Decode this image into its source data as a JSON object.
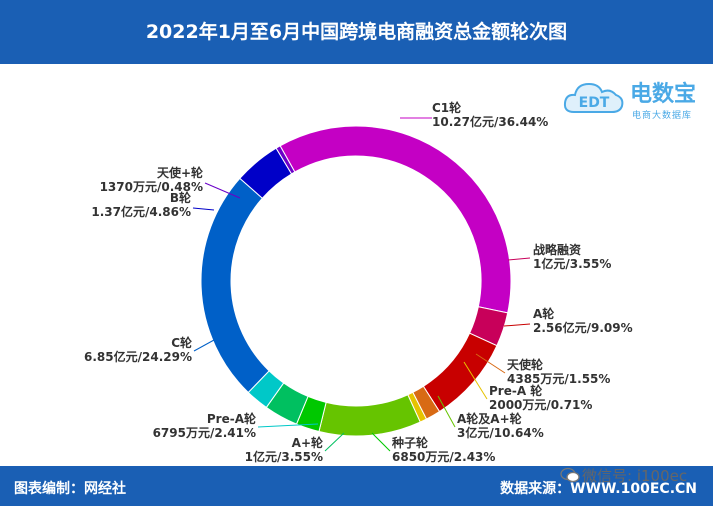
{
  "header": {
    "title": "2022年1月至6月中国跨境电商融资总金额轮次图"
  },
  "logo": {
    "brand": "电数宝",
    "sub": "电商大数据库",
    "mark": "EDT"
  },
  "footer": {
    "left": "图表编制：网经社",
    "right": "数据来源：WWW.100EC.CN"
  },
  "watermark": {
    "text": "微信号: i100ec"
  },
  "chart_data": {
    "type": "pie",
    "style": "donut",
    "title": "2022年1月至6月中国跨境电商融资总金额轮次图",
    "slices": [
      {
        "name": "C1轮",
        "amount": "10.27亿元",
        "percent": 36.44,
        "color": "#c400c4"
      },
      {
        "name": "战略融资",
        "amount": "1亿元",
        "percent": 3.55,
        "color": "#c8005a"
      },
      {
        "name": "A轮",
        "amount": "2.56亿元",
        "percent": 9.09,
        "color": "#c80000"
      },
      {
        "name": "天使轮",
        "amount": "4385万元",
        "percent": 1.55,
        "color": "#d86a14"
      },
      {
        "name": "Pre-A 轮",
        "amount": "2000万元",
        "percent": 0.71,
        "color": "#e6c300"
      },
      {
        "name": "A轮及A+轮",
        "amount": "3亿元",
        "percent": 10.64,
        "color": "#66c400"
      },
      {
        "name": "种子轮",
        "amount": "6850万元",
        "percent": 2.43,
        "color": "#00c800"
      },
      {
        "name": "A+轮",
        "amount": "1亿元",
        "percent": 3.55,
        "color": "#00c060"
      },
      {
        "name": "Pre-A轮",
        "amount": "6795万元",
        "percent": 2.41,
        "color": "#00c8c8"
      },
      {
        "name": "C轮",
        "amount": "6.85亿元",
        "percent": 24.29,
        "color": "#0060c8"
      },
      {
        "name": "B轮",
        "amount": "1.37亿元",
        "percent": 4.86,
        "color": "#0000c8"
      },
      {
        "name": "天使+轮",
        "amount": "1370万元",
        "percent": 0.48,
        "color": "#6a00c8"
      }
    ]
  }
}
